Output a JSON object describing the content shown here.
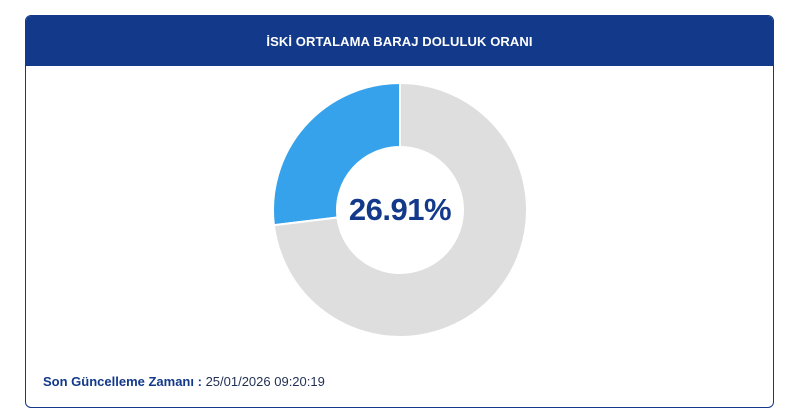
{
  "card": {
    "title": "İSKİ ORTALAMA BARAJ DOLULUK ORANI"
  },
  "chart_data": {
    "type": "pie",
    "center_label": "26.91%",
    "slices": [
      {
        "value": 26.91,
        "color": "#36a2eb"
      },
      {
        "value": 73.09,
        "color": "#dedede"
      }
    ]
  },
  "footer": {
    "label": "Son Güncelleme Zamanı",
    "separator": " : ",
    "value": "25/01/2026 09:20:19"
  }
}
